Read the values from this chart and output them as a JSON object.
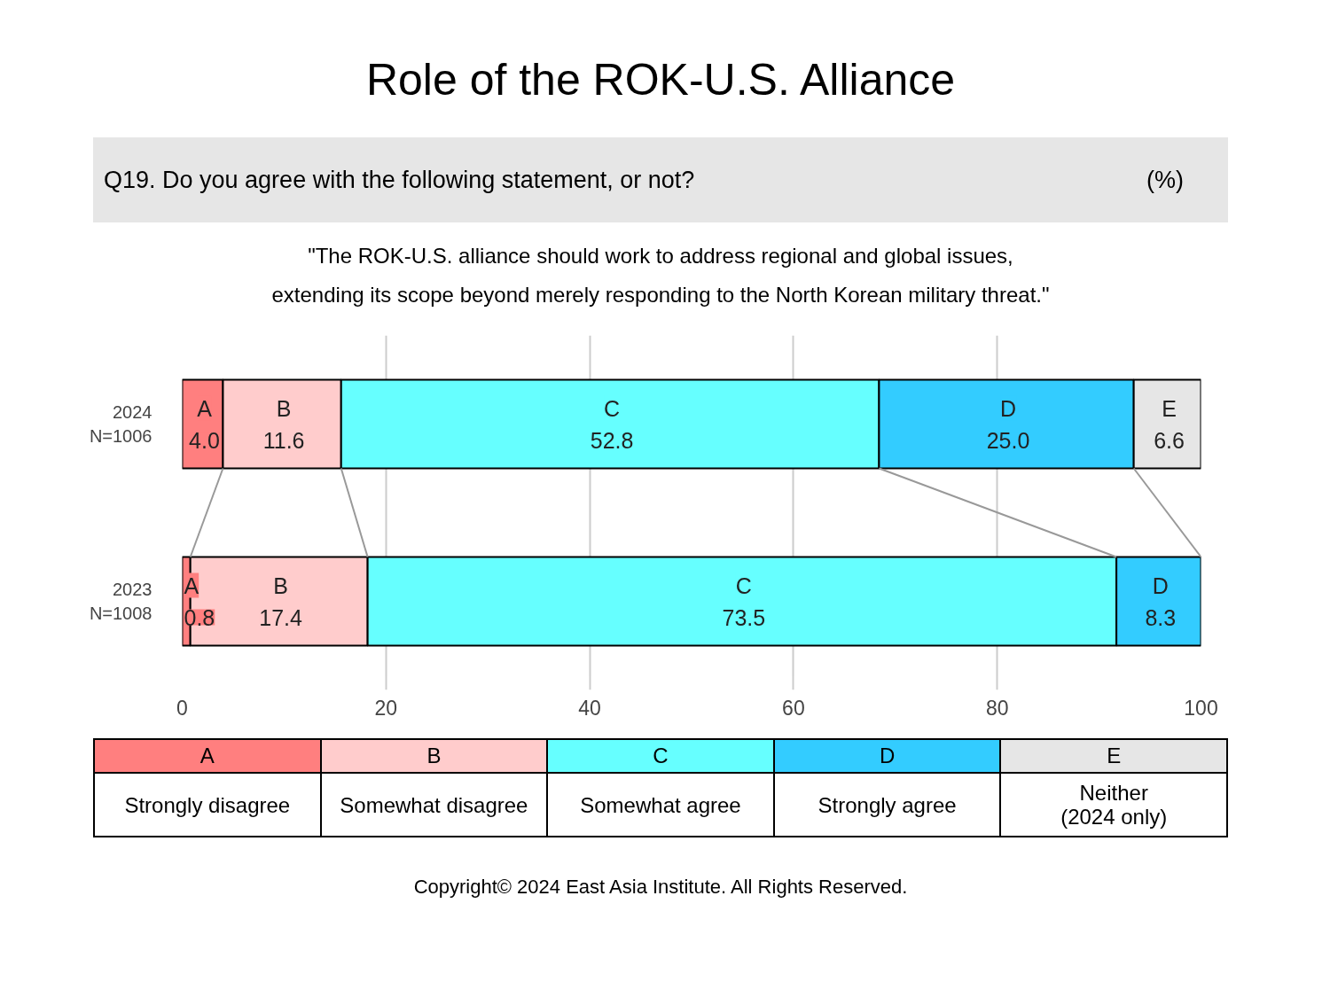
{
  "chart_data": {
    "type": "bar",
    "orientation": "horizontal",
    "stacked": true,
    "title": "Role of the ROK-U.S. Alliance",
    "subtitle": "Q19. Do you agree with the following statement, or not?",
    "categories": [
      "2024\nN=1006",
      "2023\nN=1008"
    ],
    "series": [
      {
        "name": "A",
        "color": "#ff7f7f",
        "values": [
          4.0,
          0.8
        ],
        "value_labels": [
          "4.0",
          "0.8"
        ]
      },
      {
        "name": "B",
        "color": "#ffcccc",
        "values": [
          11.6,
          17.4
        ],
        "value_labels": [
          "11.6",
          "17.4"
        ]
      },
      {
        "name": "C",
        "color": "#66ffff",
        "values": [
          52.8,
          73.5
        ],
        "value_labels": [
          "52.8",
          "73.5"
        ]
      },
      {
        "name": "D",
        "color": "#33ccff",
        "values": [
          25.0,
          8.3
        ],
        "value_labels": [
          "25.0",
          "8.3"
        ]
      },
      {
        "name": "E",
        "color": "#e6e6e6",
        "values": [
          6.6,
          null
        ],
        "value_labels": [
          "6.6",
          null
        ]
      }
    ],
    "xlim": [
      0,
      100
    ],
    "xticks": [
      0,
      20,
      40,
      60,
      80,
      100
    ],
    "grid": "x",
    "annotations": [
      "(%)",
      "\"The ROK-U.S. alliance should work to address regional and global issues,\nextending its scope beyond merely responding to the North Korean military threat.\"",
      "Strongly disagree",
      "Somewhat disagree",
      "Somewhat agree",
      "Strongly agree",
      "Neither\n(2024 only)",
      "Copyright© 2024 East Asia Institute. All Rights Reserved."
    ]
  }
}
